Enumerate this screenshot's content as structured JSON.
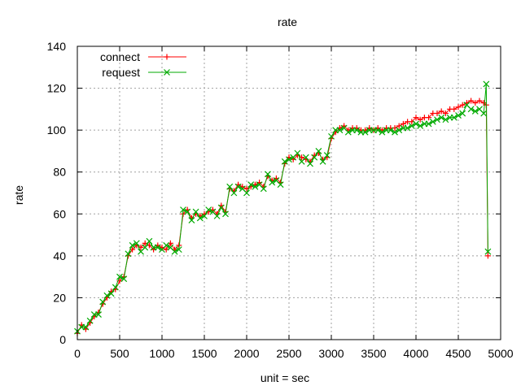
{
  "chart_data": {
    "type": "line",
    "title": "rate",
    "xlabel": "unit = sec",
    "ylabel": "rate",
    "xlim": [
      0,
      5000
    ],
    "ylim": [
      0,
      140
    ],
    "xticks": [
      0,
      500,
      1000,
      1500,
      2000,
      2500,
      3000,
      3500,
      4000,
      4500,
      5000
    ],
    "yticks": [
      0,
      20,
      40,
      60,
      80,
      100,
      120,
      140
    ],
    "grid": true,
    "legend_position": "top-left",
    "series": [
      {
        "name": "connect",
        "color": "#ff0000",
        "marker": "plus",
        "x": [
          0,
          50,
          100,
          150,
          200,
          250,
          300,
          350,
          400,
          450,
          500,
          550,
          600,
          650,
          700,
          750,
          800,
          850,
          900,
          950,
          1000,
          1050,
          1100,
          1150,
          1200,
          1250,
          1300,
          1350,
          1400,
          1450,
          1500,
          1550,
          1600,
          1650,
          1700,
          1750,
          1800,
          1850,
          1900,
          1950,
          2000,
          2050,
          2100,
          2150,
          2200,
          2250,
          2300,
          2350,
          2400,
          2450,
          2500,
          2550,
          2600,
          2650,
          2700,
          2750,
          2800,
          2850,
          2900,
          2950,
          3000,
          3050,
          3100,
          3150,
          3200,
          3250,
          3300,
          3350,
          3400,
          3450,
          3500,
          3550,
          3600,
          3650,
          3700,
          3750,
          3800,
          3850,
          3900,
          3950,
          4000,
          4050,
          4100,
          4150,
          4200,
          4250,
          4300,
          4350,
          4400,
          4450,
          4500,
          4550,
          4600,
          4650,
          4700,
          4750,
          4800,
          4830,
          4850
        ],
        "y": [
          3,
          7,
          5,
          8,
          11,
          13,
          17,
          20,
          23,
          24,
          28,
          30,
          40,
          43,
          45,
          44,
          46,
          45,
          43,
          45,
          44,
          43,
          46,
          43,
          45,
          60,
          62,
          58,
          60,
          59,
          60,
          61,
          62,
          60,
          64,
          61,
          72,
          71,
          74,
          73,
          72,
          73,
          74,
          75,
          73,
          78,
          76,
          77,
          75,
          84,
          87,
          86,
          88,
          87,
          86,
          85,
          88,
          89,
          86,
          87,
          96,
          99,
          101,
          102,
          100,
          101,
          101,
          100,
          100,
          101,
          100,
          101,
          100,
          101,
          101,
          101,
          102,
          103,
          104,
          104,
          106,
          105,
          106,
          106,
          108,
          108,
          109,
          108,
          110,
          110,
          111,
          112,
          113,
          114,
          113,
          114,
          113,
          112,
          40
        ]
      },
      {
        "name": "request",
        "color": "#00aa00",
        "marker": "x",
        "x": [
          0,
          50,
          100,
          150,
          200,
          250,
          300,
          350,
          400,
          450,
          500,
          550,
          600,
          650,
          700,
          750,
          800,
          850,
          900,
          950,
          1000,
          1050,
          1100,
          1150,
          1200,
          1250,
          1300,
          1350,
          1400,
          1450,
          1500,
          1550,
          1600,
          1650,
          1700,
          1750,
          1800,
          1850,
          1900,
          1950,
          2000,
          2050,
          2100,
          2150,
          2200,
          2250,
          2300,
          2350,
          2400,
          2450,
          2500,
          2550,
          2600,
          2650,
          2700,
          2750,
          2800,
          2850,
          2900,
          2950,
          3000,
          3050,
          3100,
          3150,
          3200,
          3250,
          3300,
          3350,
          3400,
          3450,
          3500,
          3550,
          3600,
          3650,
          3700,
          3750,
          3800,
          3850,
          3900,
          3950,
          4000,
          4050,
          4100,
          4150,
          4200,
          4250,
          4300,
          4350,
          4400,
          4450,
          4500,
          4550,
          4600,
          4650,
          4700,
          4750,
          4800,
          4830,
          4850
        ],
        "y": [
          4,
          6,
          6,
          9,
          12,
          12,
          18,
          21,
          22,
          25,
          30,
          29,
          41,
          45,
          46,
          42,
          44,
          47,
          44,
          44,
          43,
          45,
          44,
          42,
          43,
          62,
          61,
          57,
          61,
          58,
          59,
          62,
          61,
          59,
          63,
          60,
          73,
          70,
          73,
          72,
          70,
          74,
          73,
          74,
          72,
          79,
          75,
          76,
          74,
          85,
          86,
          87,
          89,
          85,
          87,
          84,
          87,
          90,
          85,
          88,
          97,
          100,
          100,
          101,
          99,
          100,
          100,
          99,
          99,
          100,
          100,
          100,
          99,
          100,
          100,
          99,
          100,
          101,
          101,
          102,
          103,
          102,
          103,
          103,
          104,
          105,
          106,
          105,
          106,
          106,
          107,
          108,
          112,
          110,
          109,
          110,
          108,
          122,
          42
        ]
      }
    ]
  }
}
